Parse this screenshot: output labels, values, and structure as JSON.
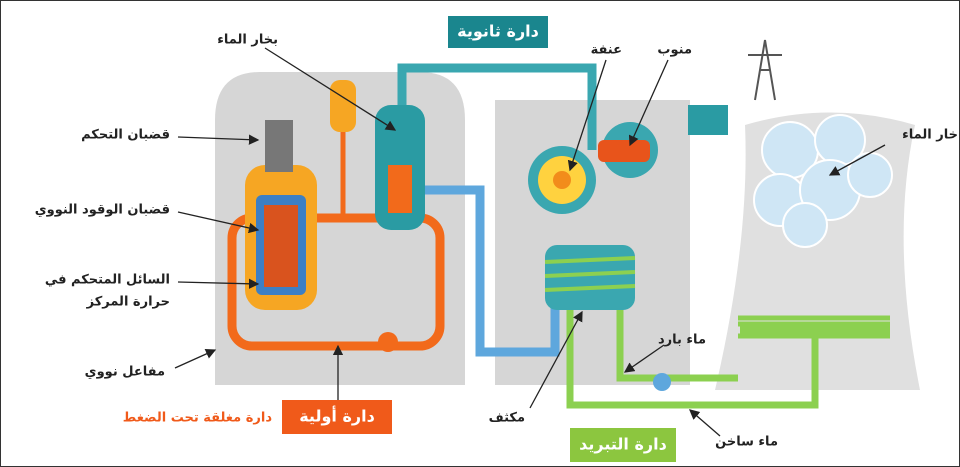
{
  "title_boxes": {
    "secondary": "دارة ثانوية",
    "primary": "دارة أولية",
    "cooling": "دارة التبريد"
  },
  "labels": {
    "steam_top": "بخار الماء",
    "turbine": "عنفة",
    "generator": "منوب",
    "steam_tower": "خار الماء",
    "control_rods": "قضبان التحكم",
    "fuel_rods": "قضبان الوقود النووي",
    "coolant_line1": "السائل المتحكم في",
    "coolant_line2": "حرارة المركز",
    "reactor": "مفاعل نووي",
    "pressurized_loop": "دارة مغلقة تحت الضغط",
    "condenser": "مكثف",
    "cold_water": "ماء بارد",
    "hot_water": "ماء ساخن"
  }
}
